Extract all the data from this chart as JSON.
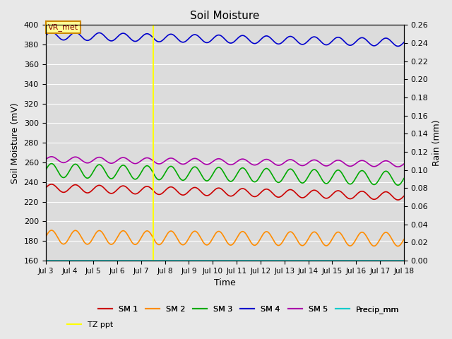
{
  "title": "Soil Moisture",
  "ylabel_left": "Soil Moisture (mV)",
  "ylabel_right": "Rain (mm)",
  "xlabel": "Time",
  "ylim_left": [
    160,
    400
  ],
  "ylim_right": [
    0.0,
    0.26
  ],
  "x_tick_days": [
    3,
    4,
    5,
    6,
    7,
    8,
    9,
    10,
    11,
    12,
    13,
    14,
    15,
    16,
    17,
    18
  ],
  "x_tick_labels": [
    "Jul 3",
    "Jul 4",
    "Jul 5",
    "Jul 6",
    "Jul 7",
    "Jul 8",
    "Jul 9",
    "Jul 10",
    "Jul 11",
    "Jul 12",
    "Jul 13",
    "Jul 14",
    "Jul 15",
    "Jul 16",
    "Jul 17",
    "Jul 18"
  ],
  "yticks_left": [
    160,
    180,
    200,
    220,
    240,
    260,
    280,
    300,
    320,
    340,
    360,
    380,
    400
  ],
  "yticks_right": [
    0.0,
    0.02,
    0.04,
    0.06,
    0.08,
    0.1,
    0.12,
    0.14,
    0.16,
    0.18,
    0.2,
    0.22,
    0.24,
    0.26
  ],
  "vline_day": 7.5,
  "vline_color": "#FFFF00",
  "sm1_color": "#CC0000",
  "sm2_color": "#FF8C00",
  "sm3_color": "#00AA00",
  "sm4_color": "#0000CC",
  "sm5_color": "#AA00AA",
  "precip_color": "#00CCCC",
  "vr_box_color": "#CC8800",
  "sm1_base": 234,
  "sm1_amp": 4,
  "sm1_freq": 1.0,
  "sm1_trend": -0.55,
  "sm2_base": 184,
  "sm2_amp": 7,
  "sm2_freq": 1.0,
  "sm2_trend": -0.15,
  "sm3_base": 252,
  "sm3_amp": 7,
  "sm3_freq": 1.0,
  "sm3_trend": -0.55,
  "sm4_base": 389,
  "sm4_amp": 4,
  "sm4_freq": 1.0,
  "sm4_trend": -0.45,
  "sm5_base": 263,
  "sm5_amp": 3,
  "sm5_freq": 1.0,
  "sm5_trend": -0.3,
  "background_color": "#E8E8E8",
  "plot_bg_color": "#DCDCDC",
  "grid_color": "#FFFFFF",
  "linewidth": 1.2
}
